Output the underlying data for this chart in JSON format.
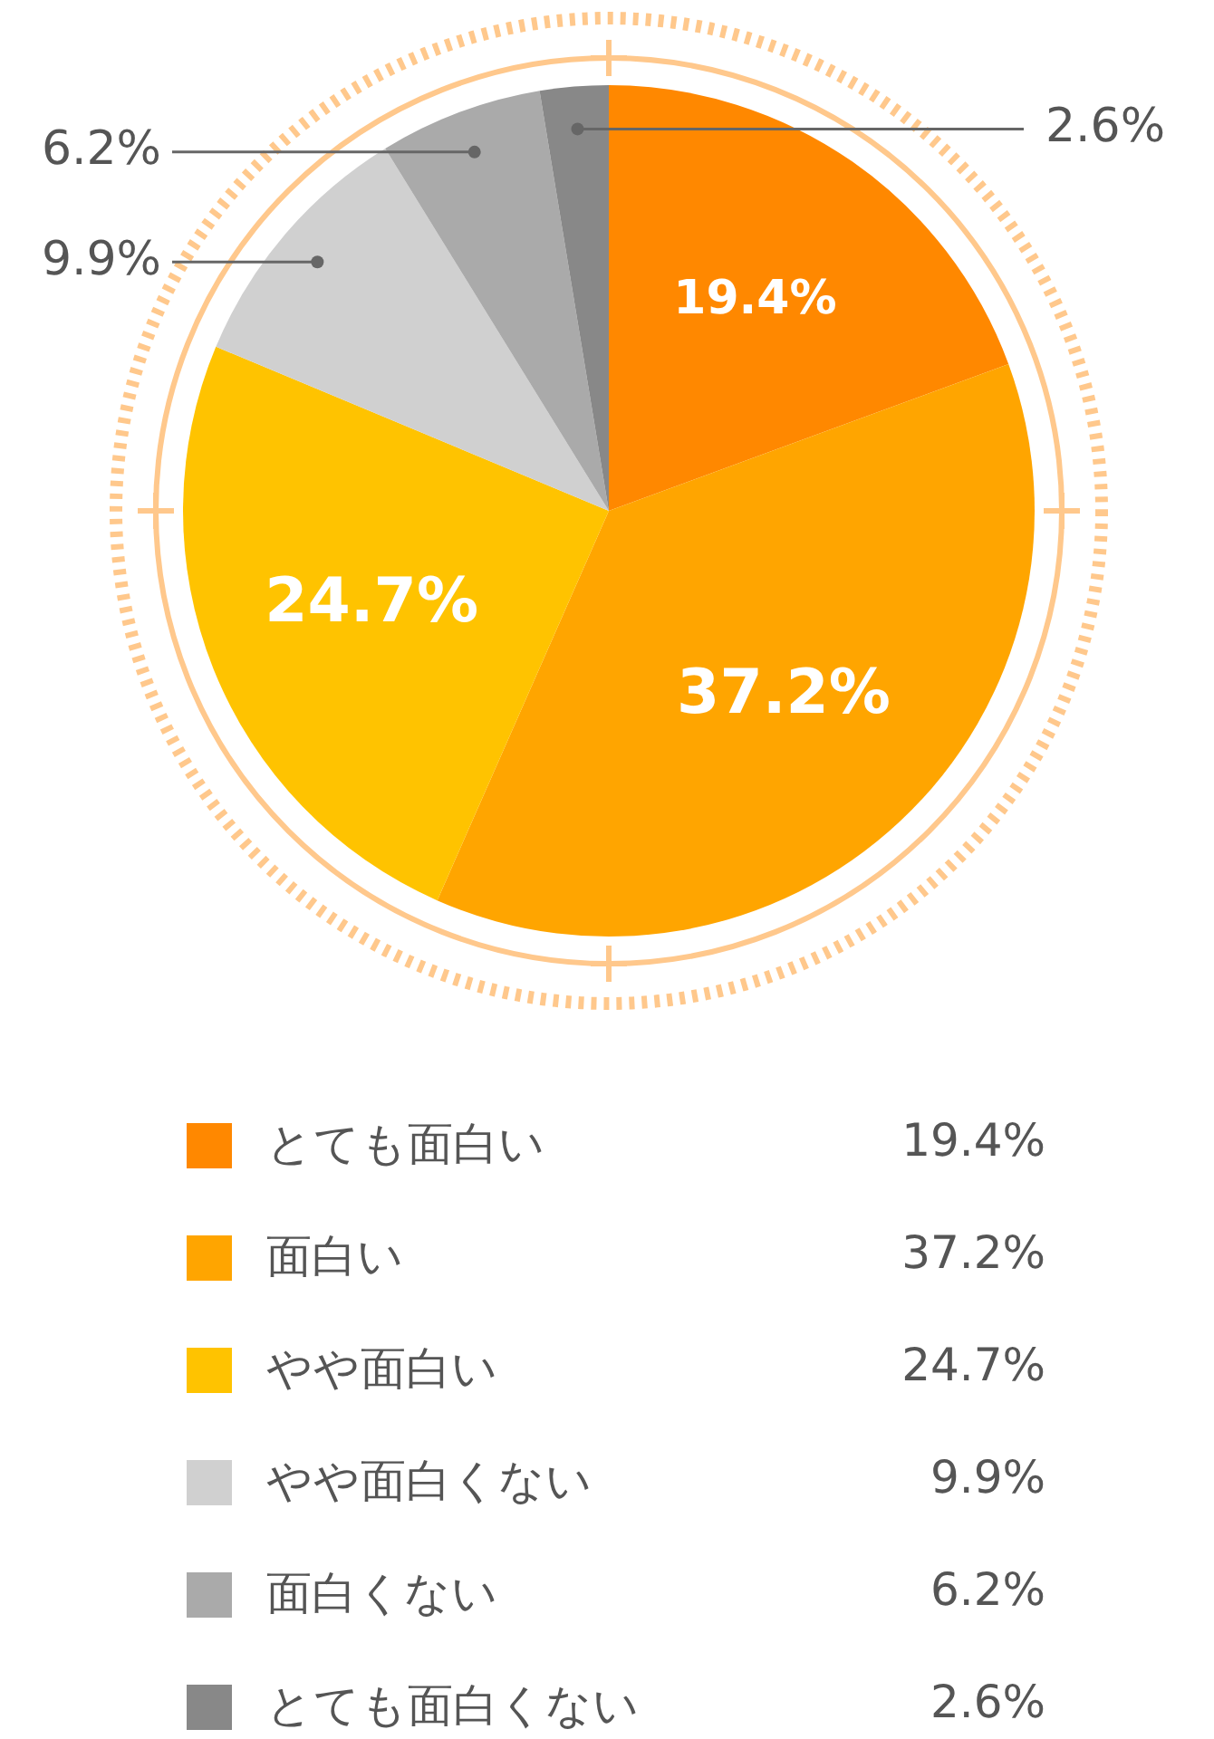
{
  "chart_data": {
    "type": "pie",
    "categories": [
      "とても面白い",
      "面白い",
      "やや面白い",
      "やや面白くない",
      "面白くない",
      "とても面白くない"
    ],
    "values": [
      19.4,
      37.2,
      24.7,
      9.9,
      6.2,
      2.6
    ],
    "value_labels": [
      "19.4%",
      "37.2%",
      "24.7%",
      "9.9%",
      "6.2%",
      "2.6%"
    ],
    "colors": [
      "#ff8800",
      "#ffa500",
      "#ffc300",
      "#d0d0d0",
      "#aaaaaa",
      "#888888"
    ],
    "legend": "bottom"
  }
}
